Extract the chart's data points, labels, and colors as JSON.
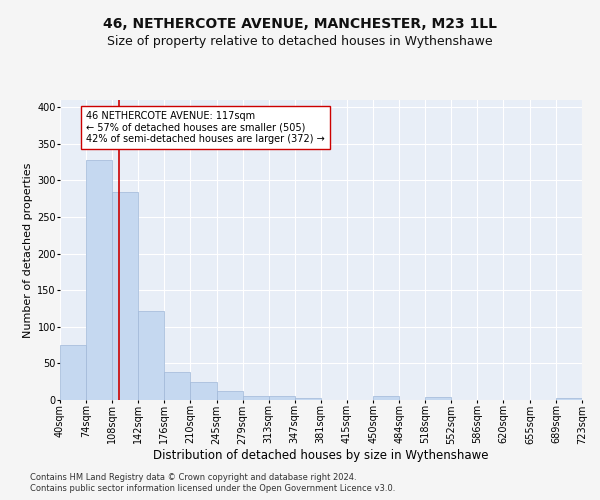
{
  "title": "46, NETHERCOTE AVENUE, MANCHESTER, M23 1LL",
  "subtitle": "Size of property relative to detached houses in Wythenshawe",
  "xlabel": "Distribution of detached houses by size in Wythenshawe",
  "ylabel": "Number of detached properties",
  "footnote1": "Contains HM Land Registry data © Crown copyright and database right 2024.",
  "footnote2": "Contains public sector information licensed under the Open Government Licence v3.0.",
  "bar_edges": [
    40,
    74,
    108,
    142,
    176,
    210,
    245,
    279,
    313,
    347,
    381,
    415,
    450,
    484,
    518,
    552,
    586,
    620,
    655,
    689,
    723
  ],
  "bar_heights": [
    75,
    328,
    284,
    122,
    38,
    24,
    12,
    5,
    5,
    3,
    0,
    0,
    5,
    0,
    4,
    0,
    0,
    0,
    0,
    3
  ],
  "bar_color": "#c5d8f0",
  "bar_edge_color": "#a0b8d8",
  "vline_x": 117,
  "vline_color": "#cc0000",
  "annotation_text": "46 NETHERCOTE AVENUE: 117sqm\n← 57% of detached houses are smaller (505)\n42% of semi-detached houses are larger (372) →",
  "annotation_box_color": "#ffffff",
  "annotation_box_edge": "#cc0000",
  "ylim": [
    0,
    410
  ],
  "bg_color": "#e8eef7",
  "grid_color": "#ffffff",
  "title_fontsize": 10,
  "subtitle_fontsize": 9,
  "ylabel_fontsize": 8,
  "xlabel_fontsize": 8.5,
  "tick_fontsize": 7,
  "footnote_fontsize": 6,
  "annotation_fontsize": 7,
  "tick_labels": [
    "40sqm",
    "74sqm",
    "108sqm",
    "142sqm",
    "176sqm",
    "210sqm",
    "245sqm",
    "279sqm",
    "313sqm",
    "347sqm",
    "381sqm",
    "415sqm",
    "450sqm",
    "484sqm",
    "518sqm",
    "552sqm",
    "586sqm",
    "620sqm",
    "655sqm",
    "689sqm",
    "723sqm"
  ],
  "yticks": [
    0,
    50,
    100,
    150,
    200,
    250,
    300,
    350,
    400
  ],
  "fig_bg": "#f5f5f5"
}
